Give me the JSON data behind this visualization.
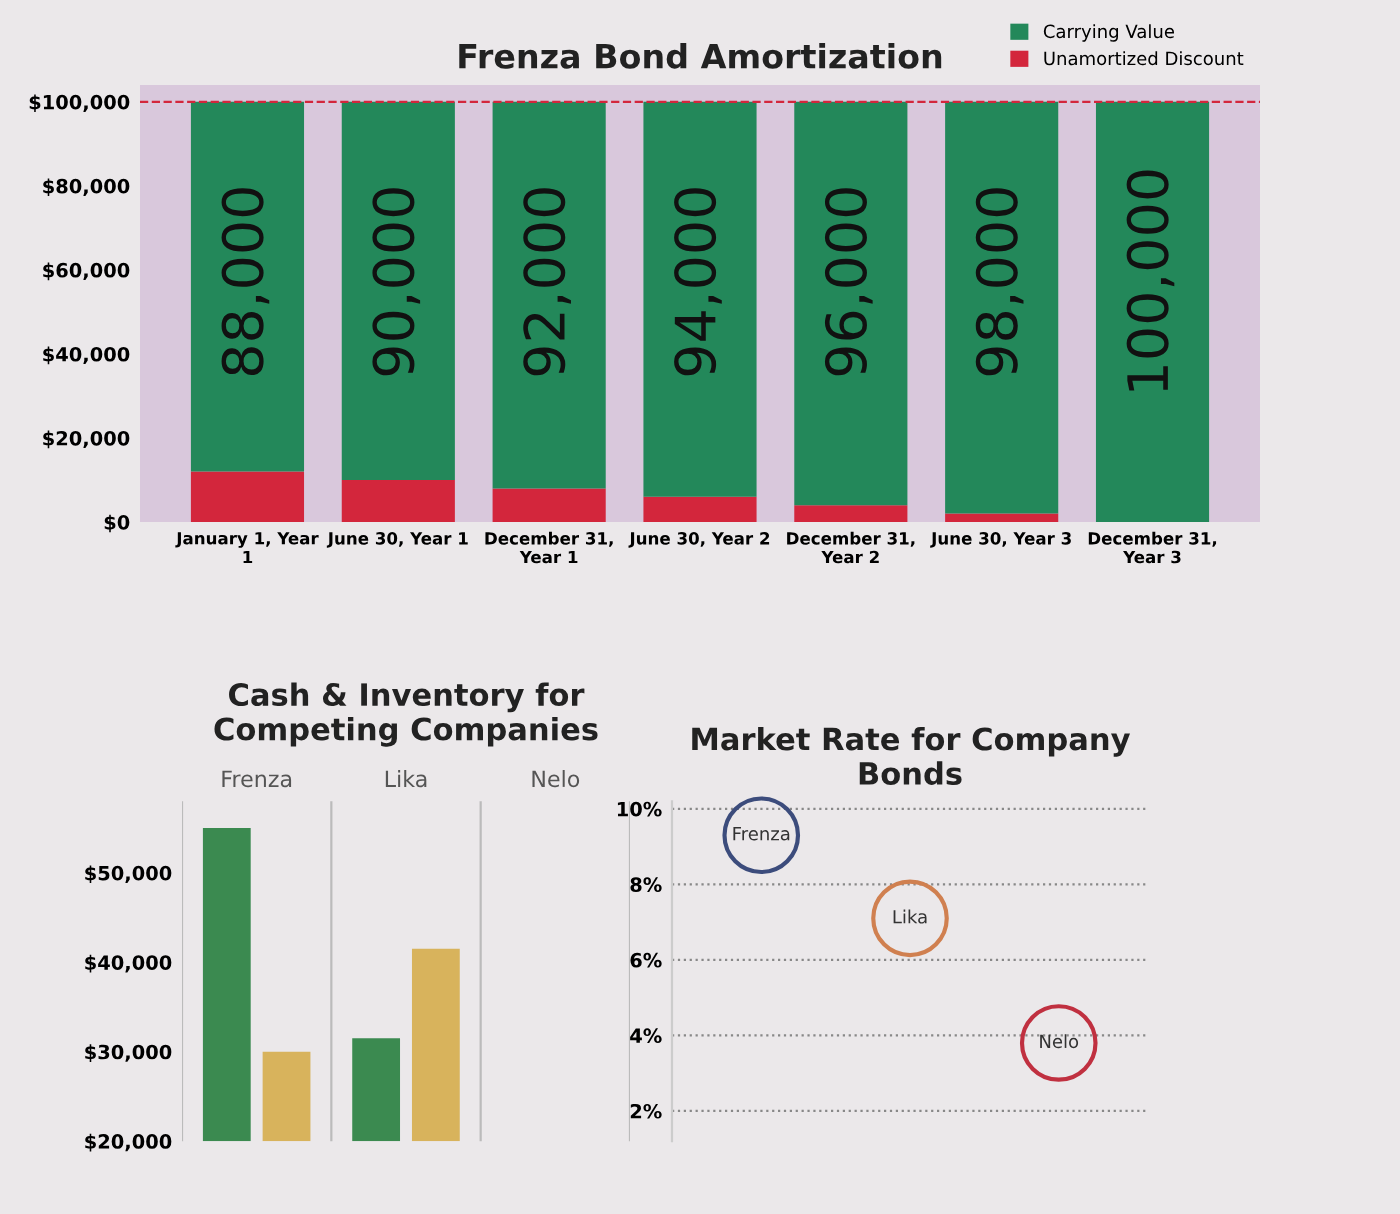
{
  "chart_data": [
    {
      "type": "bar",
      "title": "Frenza Bond Amortization",
      "stacked": true,
      "categories": [
        "January 1, Year\n1",
        "June 30, Year 1",
        "December 31,\nYear 1",
        "June 30, Year 2",
        "December 31,\nYear 2",
        "June 30, Year 3",
        "December 31,\nYear 3"
      ],
      "series": [
        {
          "name": "Unamortized Discount",
          "color": "#d3263c",
          "values": [
            12000,
            10000,
            8000,
            6000,
            4000,
            2000,
            0
          ]
        },
        {
          "name": "Carrying Value",
          "color": "#23885a",
          "values": [
            88000,
            90000,
            92000,
            94000,
            96000,
            98000,
            100000
          ]
        }
      ],
      "ylim": [
        0,
        104000
      ],
      "yticks": [
        {
          "value": 0,
          "label": "$0"
        },
        {
          "value": 20000,
          "label": "$20,000"
        },
        {
          "value": 40000,
          "label": "$40,000"
        },
        {
          "value": 60000,
          "label": "$60,000"
        },
        {
          "value": 80000,
          "label": "$80,000"
        },
        {
          "value": 100000,
          "label": "$100,000"
        }
      ],
      "ref_lines": [
        {
          "axis": "y",
          "value": 100000,
          "color": "#d3263c",
          "line_style": "dashed"
        }
      ],
      "legend": "top right",
      "grid": false,
      "annotations": [
        "88,000",
        "90,000",
        "92,000",
        "94,000",
        "96,000",
        "98,000",
        "100,000"
      ]
    },
    {
      "type": "bar",
      "title": "Cash & Inventory for\nCompeting Companies",
      "categories": [
        "Frenza",
        "Lika",
        "Nelo"
      ],
      "series": [
        {
          "color": "#3b8a50",
          "values": [
            55000,
            31500,
            null
          ]
        },
        {
          "color": "#d8b35c",
          "values": [
            30000,
            41500,
            null
          ]
        }
      ],
      "ylim": [
        20000,
        58000
      ],
      "yticks": [
        {
          "value": 20000,
          "label": "$20,000"
        },
        {
          "value": 30000,
          "label": "$30,000"
        },
        {
          "value": 40000,
          "label": "$40,000"
        },
        {
          "value": 50000,
          "label": "$50,000"
        }
      ],
      "grid": "x"
    },
    {
      "type": "scatter",
      "title": "Market Rate for Company\nBonds",
      "categories": [
        "Frenza",
        "Lika",
        "Nelo"
      ],
      "values": [
        9.3,
        7.1,
        3.8
      ],
      "colors": [
        "#3c4c7c",
        "#d08050",
        "#c03040"
      ],
      "marker": "circle",
      "ylim": [
        1.2,
        10.2
      ],
      "yticks": [
        {
          "value": 2,
          "label": "2%"
        },
        {
          "value": 4,
          "label": "4%"
        },
        {
          "value": 6,
          "label": "6%"
        },
        {
          "value": 8,
          "label": "8%"
        },
        {
          "value": 10,
          "label": "10%"
        }
      ],
      "grid": "y"
    }
  ]
}
